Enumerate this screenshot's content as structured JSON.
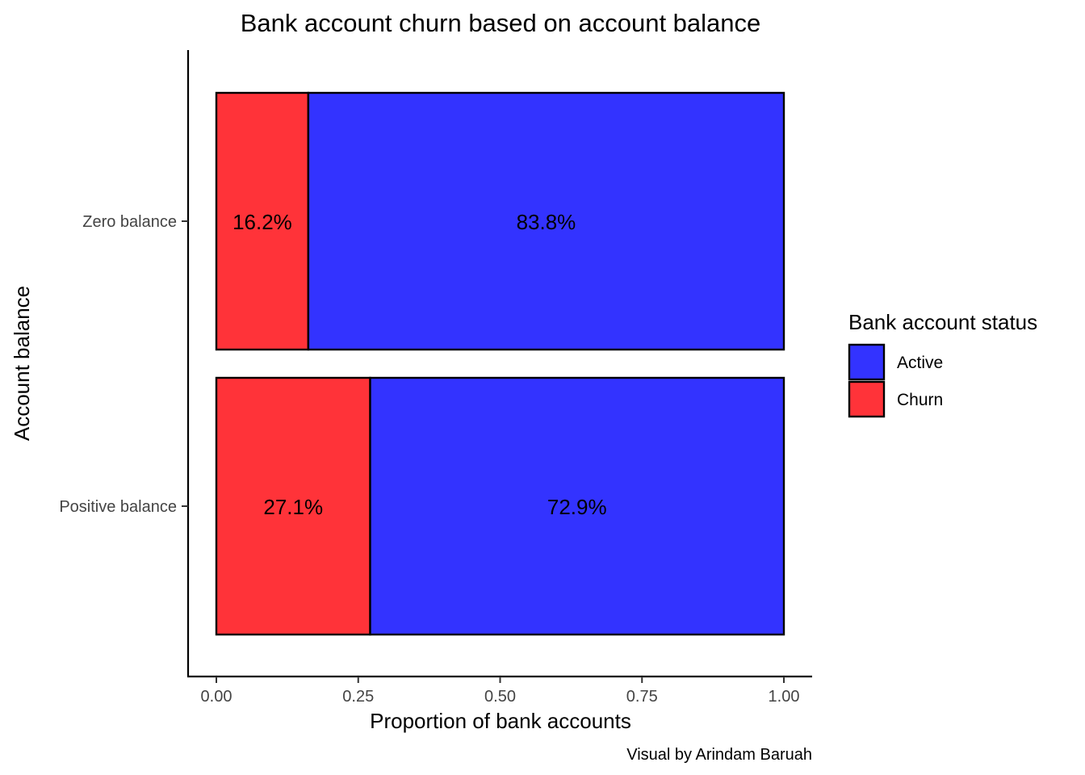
{
  "chart_data": {
    "type": "bar",
    "orientation": "horizontal",
    "stacked": true,
    "title": "Bank account churn based on account balance",
    "xlabel": "Proportion of bank accounts",
    "ylabel": "Account balance",
    "caption": "Visual by Arindam Baruah",
    "xlim": [
      0,
      1
    ],
    "xticks": [
      "0.00",
      "0.25",
      "0.50",
      "0.75",
      "1.00"
    ],
    "xtick_values": [
      0,
      0.25,
      0.5,
      0.75,
      1.0
    ],
    "categories": [
      "Zero balance",
      "Positive balance"
    ],
    "series": [
      {
        "name": "Churn",
        "values": [
          0.162,
          0.271
        ],
        "labels": [
          "16.2%",
          "27.1%"
        ],
        "color": "#FF3339"
      },
      {
        "name": "Active",
        "values": [
          0.838,
          0.729
        ],
        "labels": [
          "83.8%",
          "72.9%"
        ],
        "color": "#3333FF"
      }
    ],
    "legend": {
      "title": "Bank account status",
      "position": "right",
      "entries": [
        {
          "label": "Active",
          "color": "#3333FF"
        },
        {
          "label": "Churn",
          "color": "#FF3339"
        }
      ]
    },
    "grid": false
  }
}
